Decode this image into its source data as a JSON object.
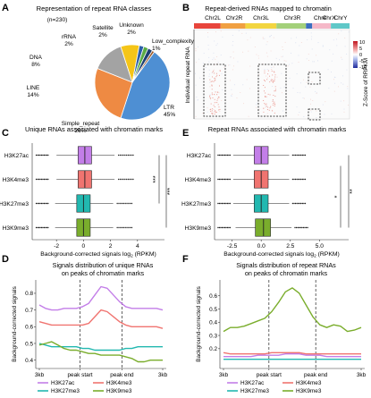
{
  "panel_letters": {
    "a": "A",
    "b": "B",
    "c": "C",
    "d": "D",
    "e": "E",
    "f": "F"
  },
  "chart_data": [
    {
      "panel": "A",
      "type": "pie",
      "title": "Representation of repeat RNA classes",
      "subtitle": "(n=230)",
      "slices": [
        {
          "name": "LTR",
          "value": 45,
          "label": "LTR\n45%",
          "color": "#4e8fd3"
        },
        {
          "name": "Simple_repeat",
          "value": 26,
          "label": "Simple_repeat\n26%",
          "color": "#ee8a43"
        },
        {
          "name": "LINE",
          "value": 14,
          "label": "LINE\n14%",
          "color": "#a3a3a3"
        },
        {
          "name": "DNA",
          "value": 8,
          "label": "DNA\n8%",
          "color": "#f5c518"
        },
        {
          "name": "rRNA",
          "value": 2,
          "label": "rRNA\n2%",
          "color": "#2c5fa8"
        },
        {
          "name": "Satellite",
          "value": 2,
          "label": "Satellite\n2%",
          "color": "#5aab46"
        },
        {
          "name": "Unknown",
          "value": 2,
          "label": "Unknown\n2%",
          "color": "#1d3f73"
        },
        {
          "name": "Low_complexity",
          "value": 1,
          "label": "Low_complexity\n1%",
          "color": "#9c5a2a"
        }
      ]
    },
    {
      "panel": "B",
      "type": "heatmap",
      "title": "Repeat-derived RNAs mapped to chromatin",
      "ylabel": "Individual repeat RNA",
      "columns": [
        {
          "name": "Chr2L",
          "color": "#e8453c"
        },
        {
          "name": "Chr2R",
          "color": "#f0a042"
        },
        {
          "name": "Chr3L",
          "color": "#f2d540"
        },
        {
          "name": "Chr3R",
          "color": "#a3d07a"
        },
        {
          "name": "Chr4",
          "color": "#3c6fc0"
        },
        {
          "name": "ChrX",
          "color": "#f5b8c8"
        },
        {
          "name": "ChrY",
          "color": "#60c8c8"
        }
      ],
      "colorbar": {
        "label": "Z-Score of RRPKM",
        "ticks": [
          "10",
          "5",
          "0",
          "-5",
          "-10"
        ],
        "min": -10,
        "max": 10
      }
    },
    {
      "panel": "C",
      "type": "boxplot",
      "title": "Unique RNAs associated with chromatin marks",
      "xlabel": "Background-corrected signals log",
      "xlabel_sub": "2",
      "xlabel_unit": " (RPKM)",
      "xlim": [
        -3.8,
        6
      ],
      "xticks": [
        "-2",
        "0",
        "2",
        "4"
      ],
      "xtick_values": [
        -2,
        0,
        2,
        4
      ],
      "categories": [
        "H3K27ac",
        "H3K4me3",
        "H3K27me3",
        "H3K9me3"
      ],
      "boxes": [
        {
          "name": "H3K27ac",
          "color": "#c37ee8",
          "q1": -0.4,
          "median": 0.1,
          "q3": 0.6,
          "wl": -2.0,
          "wh": 2.3
        },
        {
          "name": "H3K4me3",
          "color": "#f07470",
          "q1": -0.4,
          "median": 0.1,
          "q3": 0.6,
          "wl": -2.0,
          "wh": 2.3
        },
        {
          "name": "H3K27me3",
          "color": "#22b8b0",
          "q1": -0.5,
          "median": 0.0,
          "q3": 0.5,
          "wl": -2.1,
          "wh": 2.2
        },
        {
          "name": "H3K9me3",
          "color": "#7aad2c",
          "q1": -0.5,
          "median": 0.0,
          "q3": 0.5,
          "wl": -2.1,
          "wh": 2.2
        }
      ],
      "significance": [
        {
          "from": "H3K27ac",
          "to": "H3K27me3",
          "label": "***"
        },
        {
          "from": "H3K27ac",
          "to": "H3K9me3",
          "label": "***"
        }
      ]
    },
    {
      "panel": "E",
      "type": "boxplot",
      "title": "Repeat RNAs associated with chromatin marks",
      "xlabel": "Background-corrected signals log",
      "xlabel_sub": "2",
      "xlabel_unit": " (RPKM)",
      "xlim": [
        -4,
        7.5
      ],
      "xticks": [
        "-2.5",
        "0.0",
        "2.5",
        "5.0"
      ],
      "xtick_values": [
        -2.5,
        0,
        2.5,
        5
      ],
      "categories": [
        "H3K27ac",
        "H3K4me3",
        "H3K27me3",
        "H3K9me3"
      ],
      "boxes": [
        {
          "name": "H3K27ac",
          "color": "#c37ee8",
          "q1": -0.6,
          "median": 0.0,
          "q3": 0.6,
          "wl": -2.4,
          "wh": 2.4
        },
        {
          "name": "H3K4me3",
          "color": "#f07470",
          "q1": -0.6,
          "median": 0.0,
          "q3": 0.6,
          "wl": -2.4,
          "wh": 2.4
        },
        {
          "name": "H3K27me3",
          "color": "#22b8b0",
          "q1": -0.6,
          "median": 0.0,
          "q3": 0.6,
          "wl": -2.4,
          "wh": 2.4
        },
        {
          "name": "H3K9me3",
          "color": "#7aad2c",
          "q1": -0.5,
          "median": 0.2,
          "q3": 0.8,
          "wl": -2.2,
          "wh": 2.6
        }
      ],
      "significance": [
        {
          "from": "H3K27ac",
          "to": "H3K9me3",
          "label": "*"
        },
        {
          "from": "H3K27ac",
          "to": "H3K9me3",
          "label": "**"
        }
      ]
    },
    {
      "panel": "D",
      "type": "line",
      "title": "Signals distribution of unique RNAs",
      "subtitle": "on peaks of chromatin marks",
      "ylabel": "Background-corrected signals",
      "ylim": [
        0.35,
        0.88
      ],
      "yticks": [
        "0.4",
        "0.5",
        "0.6",
        "0.7",
        "0.8"
      ],
      "ytick_values": [
        0.4,
        0.5,
        0.6,
        0.7,
        0.8
      ],
      "xticks": [
        "3kb",
        "peak start",
        "peak end",
        "3kb"
      ],
      "x": [
        0,
        1,
        2,
        3,
        4,
        5,
        6,
        7,
        8,
        9,
        10,
        11,
        12,
        13,
        14,
        15,
        16,
        17,
        18,
        19,
        20
      ],
      "series": [
        {
          "name": "H3K27ac",
          "color": "#c37ee8",
          "values": [
            0.73,
            0.71,
            0.7,
            0.7,
            0.71,
            0.71,
            0.71,
            0.72,
            0.74,
            0.79,
            0.84,
            0.83,
            0.79,
            0.75,
            0.72,
            0.71,
            0.71,
            0.71,
            0.71,
            0.71,
            0.7
          ]
        },
        {
          "name": "H3K4me3",
          "color": "#f07470",
          "values": [
            0.63,
            0.62,
            0.61,
            0.61,
            0.61,
            0.61,
            0.61,
            0.61,
            0.62,
            0.66,
            0.7,
            0.69,
            0.66,
            0.63,
            0.61,
            0.6,
            0.6,
            0.6,
            0.6,
            0.6,
            0.59
          ]
        },
        {
          "name": "H3K27me3",
          "color": "#22b8b0",
          "values": [
            0.5,
            0.49,
            0.48,
            0.48,
            0.48,
            0.48,
            0.48,
            0.47,
            0.47,
            0.46,
            0.46,
            0.46,
            0.46,
            0.46,
            0.47,
            0.47,
            0.48,
            0.48,
            0.48,
            0.48,
            0.48
          ]
        },
        {
          "name": "H3K9me3",
          "color": "#7aad2c",
          "values": [
            0.49,
            0.5,
            0.51,
            0.49,
            0.47,
            0.46,
            0.46,
            0.45,
            0.44,
            0.44,
            0.43,
            0.43,
            0.43,
            0.43,
            0.42,
            0.41,
            0.39,
            0.39,
            0.4,
            0.4,
            0.4
          ]
        }
      ],
      "legend": [
        "H3K27ac",
        "H3K4me3",
        "H3K27me3",
        "H3K9me3"
      ]
    },
    {
      "panel": "F",
      "type": "line",
      "title": "Signals distribution of repeat RNAs",
      "subtitle": "on peaks of chromatin marks",
      "ylabel": "Background-corrected signals",
      "ylim": [
        0.05,
        0.72
      ],
      "yticks": [
        "0.2",
        "0.3",
        "0.4",
        "0.5",
        "0.6"
      ],
      "ytick_values": [
        0.2,
        0.3,
        0.4,
        0.5,
        0.6
      ],
      "xticks": [
        "3kb",
        "peak start",
        "peak end",
        "3kb"
      ],
      "x": [
        0,
        1,
        2,
        3,
        4,
        5,
        6,
        7,
        8,
        9,
        10,
        11,
        12,
        13,
        14,
        15,
        16,
        17,
        18,
        19,
        20
      ],
      "series": [
        {
          "name": "H3K27ac",
          "color": "#c37ee8",
          "values": [
            0.14,
            0.14,
            0.14,
            0.14,
            0.14,
            0.15,
            0.15,
            0.15,
            0.15,
            0.16,
            0.16,
            0.16,
            0.15,
            0.15,
            0.15,
            0.14,
            0.14,
            0.14,
            0.14,
            0.14,
            0.14
          ]
        },
        {
          "name": "H3K4me3",
          "color": "#f07470",
          "values": [
            0.17,
            0.16,
            0.16,
            0.16,
            0.16,
            0.16,
            0.16,
            0.17,
            0.17,
            0.17,
            0.17,
            0.17,
            0.16,
            0.16,
            0.16,
            0.16,
            0.16,
            0.16,
            0.16,
            0.16,
            0.16
          ]
        },
        {
          "name": "H3K27me3",
          "color": "#22b8b0",
          "values": [
            0.12,
            0.12,
            0.12,
            0.12,
            0.12,
            0.12,
            0.12,
            0.12,
            0.12,
            0.12,
            0.12,
            0.12,
            0.12,
            0.12,
            0.12,
            0.12,
            0.12,
            0.12,
            0.12,
            0.12,
            0.12
          ]
        },
        {
          "name": "H3K9me3",
          "color": "#7aad2c",
          "values": [
            0.33,
            0.36,
            0.36,
            0.37,
            0.39,
            0.41,
            0.43,
            0.48,
            0.55,
            0.63,
            0.66,
            0.62,
            0.53,
            0.44,
            0.38,
            0.36,
            0.38,
            0.37,
            0.33,
            0.34,
            0.36
          ]
        }
      ],
      "legend": [
        "H3K27ac",
        "H3K4me3",
        "H3K27me3",
        "H3K9me3"
      ]
    }
  ]
}
